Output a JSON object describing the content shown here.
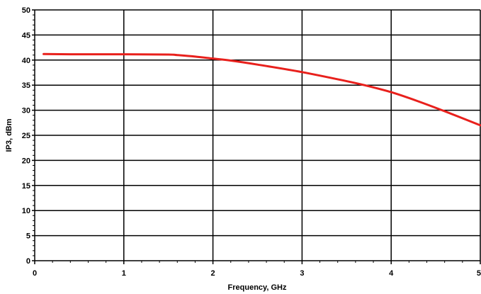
{
  "chart_data": {
    "type": "line",
    "xlabel": "Frequency, GHz",
    "ylabel": "IP3, dBm",
    "xlim": [
      0,
      5
    ],
    "ylim": [
      0,
      50
    ],
    "x_ticks": [
      "0",
      "1",
      "2",
      "3",
      "4",
      "5"
    ],
    "y_ticks": [
      "0",
      "5",
      "10",
      "15",
      "20",
      "25",
      "30",
      "35",
      "40",
      "45",
      "50"
    ],
    "grid": true,
    "colors": {
      "series": "#e8201c",
      "grid": "#000000"
    },
    "series": [
      {
        "x": [
          0.1,
          0.5,
          1.0,
          1.5,
          1.6,
          1.8,
          2.0,
          2.2,
          2.5,
          3.0,
          3.5,
          3.7,
          4.0,
          4.3,
          4.6,
          5.0
        ],
        "y": [
          41.2,
          41.15,
          41.15,
          41.1,
          41.0,
          40.7,
          40.3,
          39.9,
          39.1,
          37.6,
          35.8,
          35.0,
          33.6,
          31.8,
          29.8,
          27.0
        ]
      }
    ]
  }
}
